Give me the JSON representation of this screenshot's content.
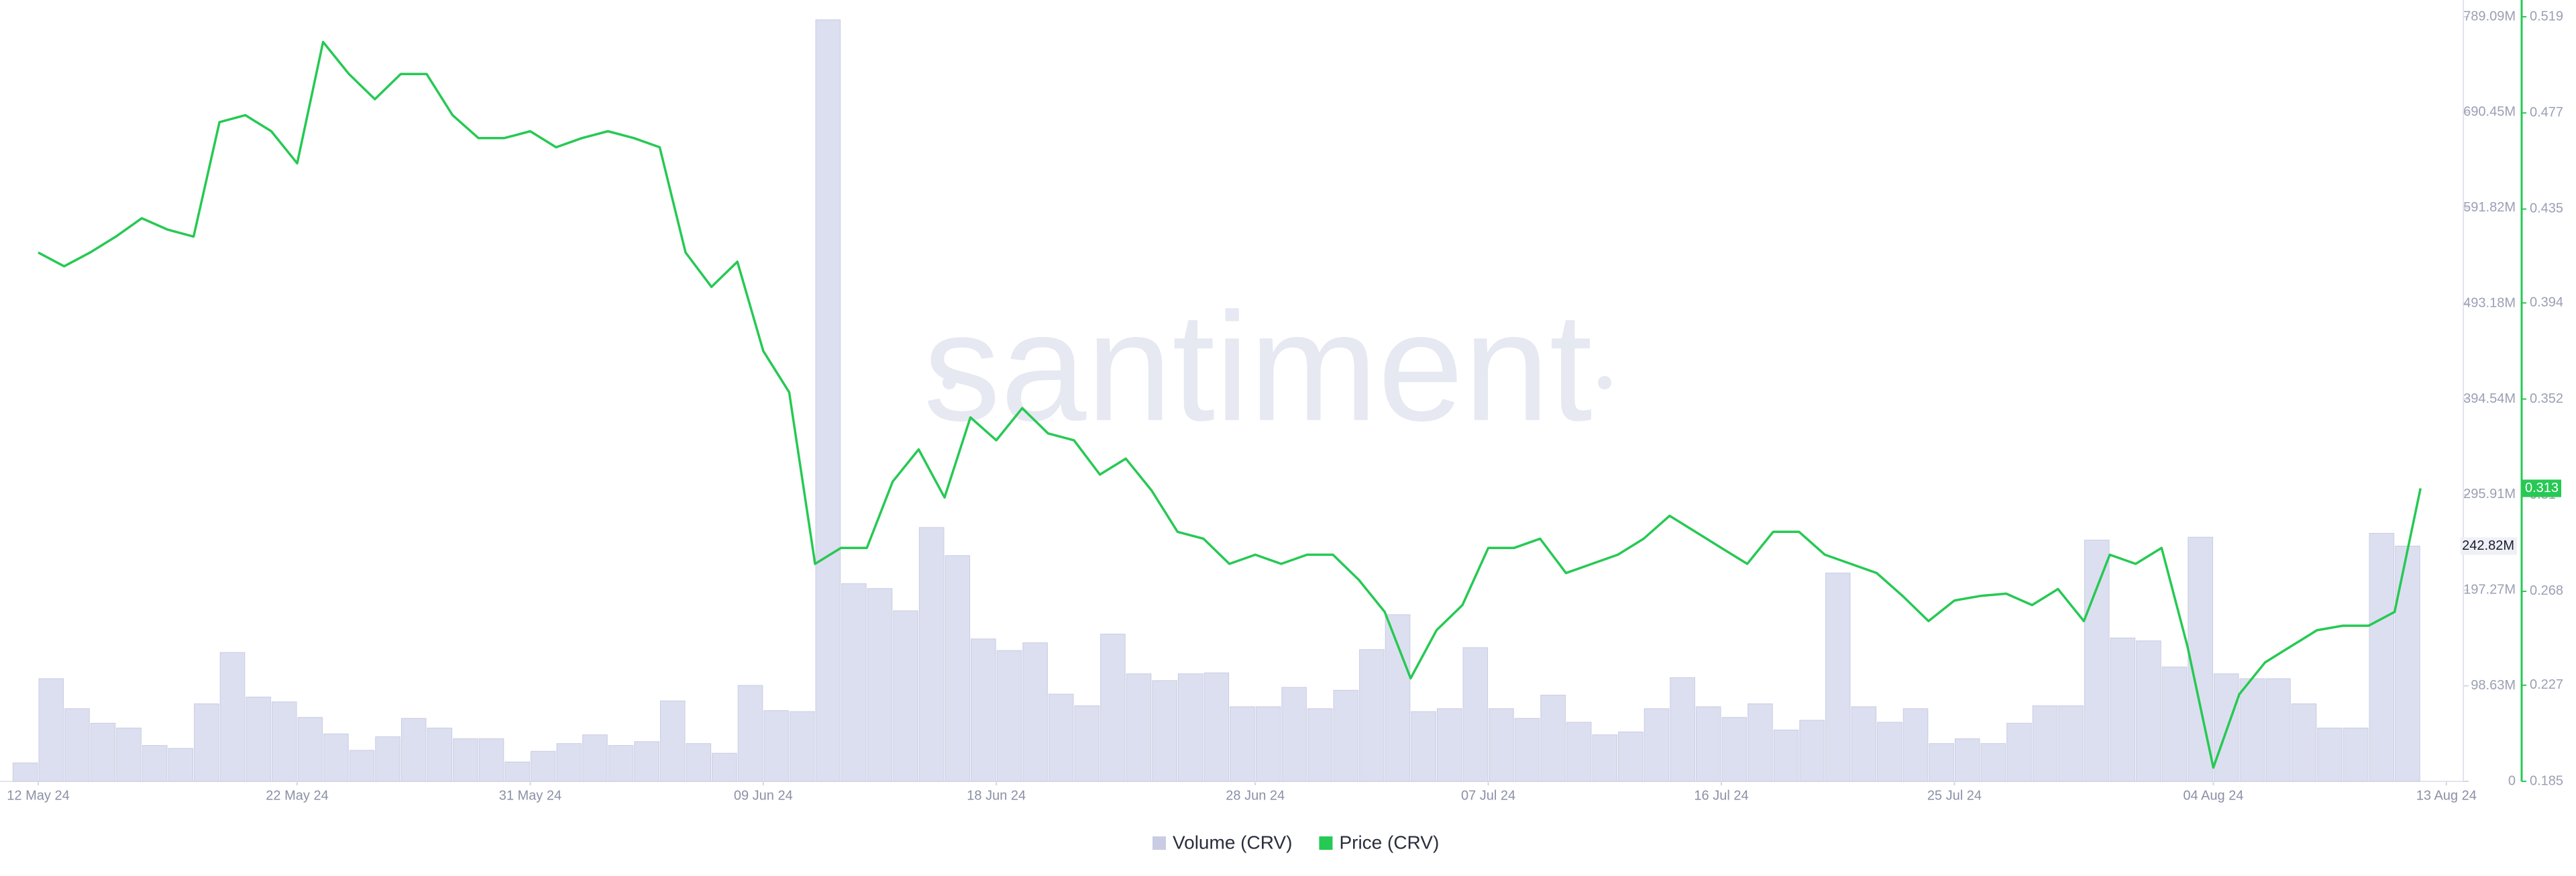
{
  "chart_data": {
    "type": "bar-line",
    "watermark": "santiment",
    "x": [
      "2024-05-12",
      "2024-05-13",
      "2024-05-14",
      "2024-05-15",
      "2024-05-16",
      "2024-05-17",
      "2024-05-18",
      "2024-05-19",
      "2024-05-20",
      "2024-05-21",
      "2024-05-22",
      "2024-05-23",
      "2024-05-24",
      "2024-05-25",
      "2024-05-26",
      "2024-05-27",
      "2024-05-28",
      "2024-05-29",
      "2024-05-30",
      "2024-05-31",
      "2024-06-01",
      "2024-06-02",
      "2024-06-03",
      "2024-06-04",
      "2024-06-05",
      "2024-06-06",
      "2024-06-07",
      "2024-06-08",
      "2024-06-09",
      "2024-06-10",
      "2024-06-11",
      "2024-06-12",
      "2024-06-13",
      "2024-06-14",
      "2024-06-15",
      "2024-06-16",
      "2024-06-17",
      "2024-06-18",
      "2024-06-19",
      "2024-06-20",
      "2024-06-21",
      "2024-06-22",
      "2024-06-23",
      "2024-06-24",
      "2024-06-25",
      "2024-06-26",
      "2024-06-27",
      "2024-06-28",
      "2024-06-29",
      "2024-06-30",
      "2024-07-01",
      "2024-07-02",
      "2024-07-03",
      "2024-07-04",
      "2024-07-05",
      "2024-07-06",
      "2024-07-07",
      "2024-07-08",
      "2024-07-09",
      "2024-07-10",
      "2024-07-11",
      "2024-07-12",
      "2024-07-13",
      "2024-07-14",
      "2024-07-15",
      "2024-07-16",
      "2024-07-17",
      "2024-07-18",
      "2024-07-19",
      "2024-07-20",
      "2024-07-21",
      "2024-07-22",
      "2024-07-23",
      "2024-07-24",
      "2024-07-25",
      "2024-07-26",
      "2024-07-27",
      "2024-07-28",
      "2024-07-29",
      "2024-07-30",
      "2024-07-31",
      "2024-08-01",
      "2024-08-02",
      "2024-08-03",
      "2024-08-04",
      "2024-08-05",
      "2024-08-06",
      "2024-08-07",
      "2024-08-08",
      "2024-08-09",
      "2024-08-10",
      "2024-08-11",
      "2024-08-12"
    ],
    "xticks": [
      {
        "value": "2024-05-12",
        "label": "12 May 24"
      },
      {
        "value": "2024-05-22",
        "label": "22 May 24"
      },
      {
        "value": "2024-05-31",
        "label": "31 May 24"
      },
      {
        "value": "2024-06-09",
        "label": "09 Jun 24"
      },
      {
        "value": "2024-06-18",
        "label": "18 Jun 24"
      },
      {
        "value": "2024-06-28",
        "label": "28 Jun 24"
      },
      {
        "value": "2024-07-07",
        "label": "07 Jul 24"
      },
      {
        "value": "2024-07-16",
        "label": "16 Jul 24"
      },
      {
        "value": "2024-07-25",
        "label": "25 Jul 24"
      },
      {
        "value": "2024-08-04",
        "label": "04 Aug 24"
      },
      {
        "value": "2024-08-13",
        "label": "13 Aug 24"
      }
    ],
    "ylim": [
      0,
      789090000
    ],
    "yticks": [
      0,
      {
        "value": 98630000,
        "label": "98.63M"
      },
      {
        "value": 197270000,
        "label": "197.27M"
      },
      {
        "value": 295910000,
        "label": "295.91M"
      },
      {
        "value": 394540000,
        "label": "394.54M"
      },
      {
        "value": 493180000,
        "label": "493.18M"
      },
      {
        "value": 591820000,
        "label": "591.82M"
      },
      {
        "value": 690450000,
        "label": "690.45M"
      },
      {
        "value": 789090000,
        "label": "789.09M"
      }
    ],
    "y2lim": [
      0.185,
      0.519
    ],
    "y2ticks": [
      0.185,
      0.227,
      0.268,
      0.31,
      0.352,
      0.394,
      0.435,
      0.477,
      0.519
    ],
    "series": [
      {
        "name": "Volume (CRV)",
        "type": "bar",
        "color": "#dcdfef",
        "last_value_label": "242.82M",
        "values": [
          19000000,
          106000000,
          75000000,
          60000000,
          55000000,
          37000000,
          34000000,
          80000000,
          133000000,
          87000000,
          82000000,
          66000000,
          49000000,
          32000000,
          46000000,
          65000000,
          55000000,
          44000000,
          44000000,
          20000000,
          31000000,
          39000000,
          48000000,
          37000000,
          41000000,
          83000000,
          39000000,
          29000000,
          99000000,
          73000000,
          72000000,
          786000000,
          204000000,
          199000000,
          176000000,
          262000000,
          233000000,
          147000000,
          135000000,
          143000000,
          90000000,
          78000000,
          152000000,
          111000000,
          104000000,
          111000000,
          112000000,
          77000000,
          77000000,
          97000000,
          75000000,
          94000000,
          136000000,
          172000000,
          72000000,
          75000000,
          138000000,
          75000000,
          65000000,
          89000000,
          61000000,
          48000000,
          51000000,
          75000000,
          107000000,
          77000000,
          66000000,
          80000000,
          53000000,
          63000000,
          215000000,
          77000000,
          61000000,
          75000000,
          39000000,
          44000000,
          39000000,
          60000000,
          78000000,
          78000000,
          249000000,
          148000000,
          145000000,
          118000000,
          252000000,
          111000000,
          106000000,
          106000000,
          80000000,
          55000000,
          55000000,
          256000000,
          242820000
        ]
      },
      {
        "name": "Price (CRV)",
        "type": "line",
        "axis": "y2",
        "color": "#26c953",
        "last_value_label": "0.313",
        "values": [
          0.416,
          0.41,
          0.416,
          0.423,
          0.431,
          0.426,
          0.423,
          0.473,
          0.476,
          0.469,
          0.455,
          0.508,
          0.494,
          0.483,
          0.494,
          0.494,
          0.476,
          0.466,
          0.466,
          0.469,
          0.462,
          0.466,
          0.469,
          0.466,
          0.462,
          0.416,
          0.401,
          0.412,
          0.373,
          0.355,
          0.28,
          0.287,
          0.287,
          0.316,
          0.33,
          0.309,
          0.344,
          0.334,
          0.348,
          0.337,
          0.334,
          0.319,
          0.326,
          0.312,
          0.294,
          0.291,
          0.28,
          0.284,
          0.28,
          0.284,
          0.284,
          0.273,
          0.259,
          0.23,
          0.251,
          0.262,
          0.287,
          0.287,
          0.291,
          0.276,
          0.28,
          0.284,
          0.291,
          0.301,
          0.294,
          0.287,
          0.28,
          0.294,
          0.294,
          0.284,
          0.28,
          0.276,
          0.266,
          0.255,
          0.264,
          0.266,
          0.267,
          0.262,
          0.269,
          0.255,
          0.284,
          0.28,
          0.287,
          0.244,
          0.191,
          0.223,
          0.237,
          0.244,
          0.251,
          0.253,
          0.253,
          0.259,
          0.313
        ]
      }
    ]
  }
}
